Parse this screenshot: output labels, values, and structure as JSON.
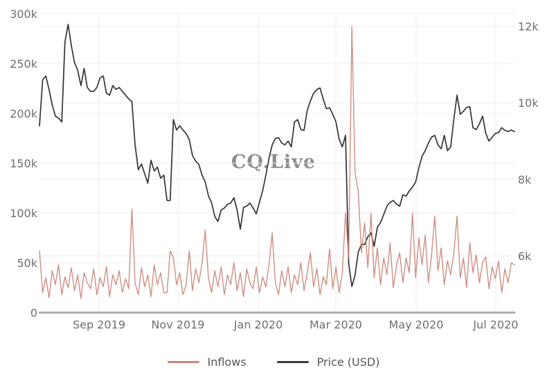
{
  "watermark": "CQ.Live",
  "legend": {
    "items": [
      {
        "label": "Inflows",
        "color": "#c98275"
      },
      {
        "label": "Price (USD)",
        "color": "#3a3a3a"
      }
    ]
  },
  "chart_data": {
    "type": "line",
    "title": "",
    "grid": true,
    "legend_position": "bottom",
    "x_axis": {
      "tick_labels": [
        "Sep 2019",
        "Nov 2019",
        "Jan 2020",
        "Mar 2020",
        "May 2020",
        "Jul 2020"
      ]
    },
    "y_left": {
      "series": "Inflows",
      "tick_labels": [
        "0",
        "50k",
        "100k",
        "150k",
        "200k",
        "250k",
        "300k"
      ],
      "tick_values_k": [
        0,
        50,
        100,
        150,
        200,
        250,
        300
      ],
      "range_k": [
        0,
        300
      ]
    },
    "y_right": {
      "series": "Price (USD)",
      "tick_labels": [
        "6k",
        "8k",
        "10k",
        "12k"
      ],
      "tick_values": [
        6000,
        8000,
        10000,
        12000
      ]
    },
    "series": [
      {
        "name": "Inflows",
        "axis": "left",
        "unit": "k",
        "color": "#c98275",
        "values": [
          62,
          20,
          35,
          15,
          42,
          28,
          48,
          18,
          36,
          25,
          45,
          22,
          38,
          14,
          40,
          30,
          24,
          44,
          18,
          35,
          26,
          46,
          16,
          38,
          28,
          42,
          20,
          34,
          24,
          104,
          30,
          18,
          45,
          26,
          38,
          16,
          48,
          28,
          40,
          20,
          20,
          62,
          55,
          28,
          40,
          18,
          28,
          62,
          22,
          44,
          30,
          50,
          83,
          35,
          20,
          42,
          26,
          46,
          18,
          38,
          28,
          50,
          22,
          40,
          16,
          44,
          30,
          24,
          46,
          20,
          36,
          26,
          48,
          80,
          30,
          18,
          42,
          26,
          46,
          20,
          38,
          28,
          50,
          22,
          40,
          60,
          26,
          44,
          18,
          36,
          28,
          64,
          24,
          46,
          20,
          40,
          100,
          55,
          287,
          140,
          122,
          60,
          90,
          45,
          100,
          35,
          65,
          28,
          55,
          38,
          70,
          25,
          48,
          60,
          30,
          55,
          40,
          100,
          35,
          75,
          48,
          78,
          30,
          58,
          97,
          42,
          65,
          28,
          52,
          38,
          60,
          97,
          35,
          55,
          25,
          70,
          40,
          58,
          30,
          50,
          56,
          24,
          46,
          34,
          52,
          20,
          44,
          30,
          50,
          48
        ]
      },
      {
        "name": "Price (USD)",
        "axis": "right",
        "unit": "USD",
        "color": "#333333",
        "values": [
          9400,
          10600,
          10700,
          10350,
          9950,
          9650,
          9600,
          9500,
          11600,
          12050,
          11500,
          11050,
          10850,
          10450,
          10900,
          10400,
          10300,
          10300,
          10400,
          10650,
          10700,
          10250,
          10200,
          10450,
          10350,
          10400,
          10300,
          10200,
          10100,
          10030,
          8900,
          8250,
          8400,
          8150,
          7900,
          8500,
          8220,
          8320,
          8030,
          8110,
          7450,
          7450,
          9560,
          9290,
          9400,
          9290,
          9200,
          9030,
          8620,
          8480,
          8390,
          8110,
          7930,
          7570,
          7390,
          7030,
          6900,
          7200,
          7250,
          7350,
          7380,
          7520,
          7200,
          6700,
          7270,
          7300,
          7380,
          7250,
          7100,
          7400,
          7700,
          8100,
          8550,
          8900,
          9070,
          9090,
          8950,
          8900,
          9000,
          8850,
          9500,
          9560,
          9300,
          9280,
          9800,
          10050,
          10250,
          10350,
          10390,
          10100,
          9850,
          9870,
          9700,
          9500,
          9050,
          8850,
          9150,
          5800,
          5200,
          5500,
          6100,
          6300,
          6300,
          6500,
          6600,
          6250,
          6750,
          6870,
          7080,
          7300,
          7400,
          7450,
          7350,
          7300,
          7600,
          7560,
          7700,
          7800,
          7930,
          8300,
          8600,
          8750,
          8950,
          9100,
          9150,
          8900,
          8800,
          9150,
          8750,
          8850,
          9580,
          10200,
          9700,
          9780,
          9880,
          9900,
          9350,
          9300,
          9450,
          9650,
          9200,
          9000,
          9100,
          9200,
          9220,
          9350,
          9280,
          9250,
          9290,
          9250
        ]
      }
    ]
  }
}
